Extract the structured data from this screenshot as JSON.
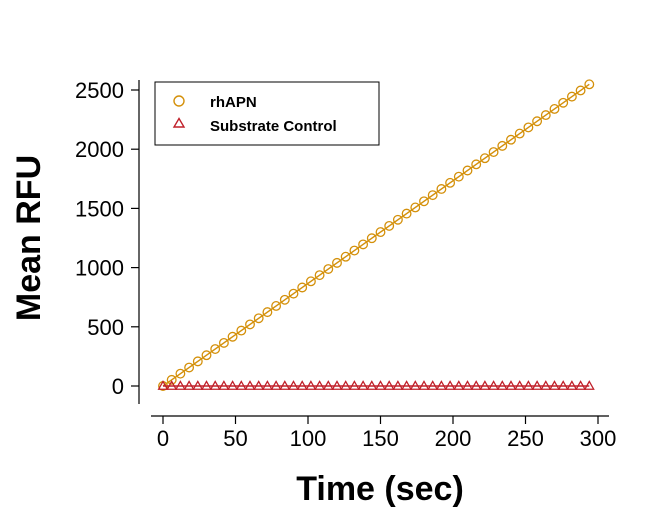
{
  "chart_data": {
    "type": "scatter",
    "xlabel": "Time (sec)",
    "ylabel": "Mean RFU",
    "xlim": [
      0,
      300
    ],
    "ylim": [
      0,
      2500
    ],
    "xticks": [
      0,
      50,
      100,
      150,
      200,
      250,
      300
    ],
    "yticks": [
      0,
      500,
      1000,
      1500,
      2000,
      2500
    ],
    "xtick_labels": [
      "0",
      "50",
      "100",
      "150",
      "200",
      "250",
      "300"
    ],
    "ytick_labels": [
      "0",
      "500",
      "1000",
      "1500",
      "2000",
      "2500"
    ],
    "grid": false,
    "legend_position": "top-left",
    "x": [
      0,
      6,
      12,
      18,
      24,
      30,
      36,
      42,
      48,
      54,
      60,
      66,
      72,
      78,
      84,
      90,
      96,
      102,
      108,
      114,
      120,
      126,
      132,
      138,
      144,
      150,
      156,
      162,
      168,
      174,
      180,
      186,
      192,
      198,
      204,
      210,
      216,
      222,
      228,
      234,
      240,
      246,
      252,
      258,
      264,
      270,
      276,
      282,
      288,
      294
    ],
    "series": [
      {
        "name": "rhAPN",
        "marker": "circle",
        "color": "#D4900A",
        "fit_line": true,
        "values": [
          0,
          52,
          104,
          156,
          208,
          260,
          312,
          364,
          416,
          468,
          520,
          572,
          624,
          676,
          728,
          780,
          832,
          884,
          936,
          988,
          1040,
          1092,
          1144,
          1196,
          1248,
          1300,
          1352,
          1404,
          1456,
          1508,
          1560,
          1612,
          1664,
          1716,
          1768,
          1820,
          1872,
          1924,
          1976,
          2028,
          2080,
          2132,
          2184,
          2236,
          2288,
          2340,
          2392,
          2444,
          2496,
          2548
        ]
      },
      {
        "name": "Substrate Control",
        "marker": "triangle",
        "color": "#C0202A",
        "fit_line": true,
        "values": [
          0,
          0,
          0,
          0,
          0,
          0,
          0,
          0,
          0,
          0,
          0,
          0,
          0,
          0,
          0,
          0,
          0,
          0,
          0,
          0,
          0,
          0,
          0,
          0,
          0,
          0,
          0,
          0,
          0,
          0,
          0,
          0,
          0,
          0,
          0,
          0,
          0,
          0,
          0,
          0,
          0,
          0,
          0,
          0,
          0,
          0,
          0,
          0,
          0,
          0
        ]
      }
    ]
  }
}
